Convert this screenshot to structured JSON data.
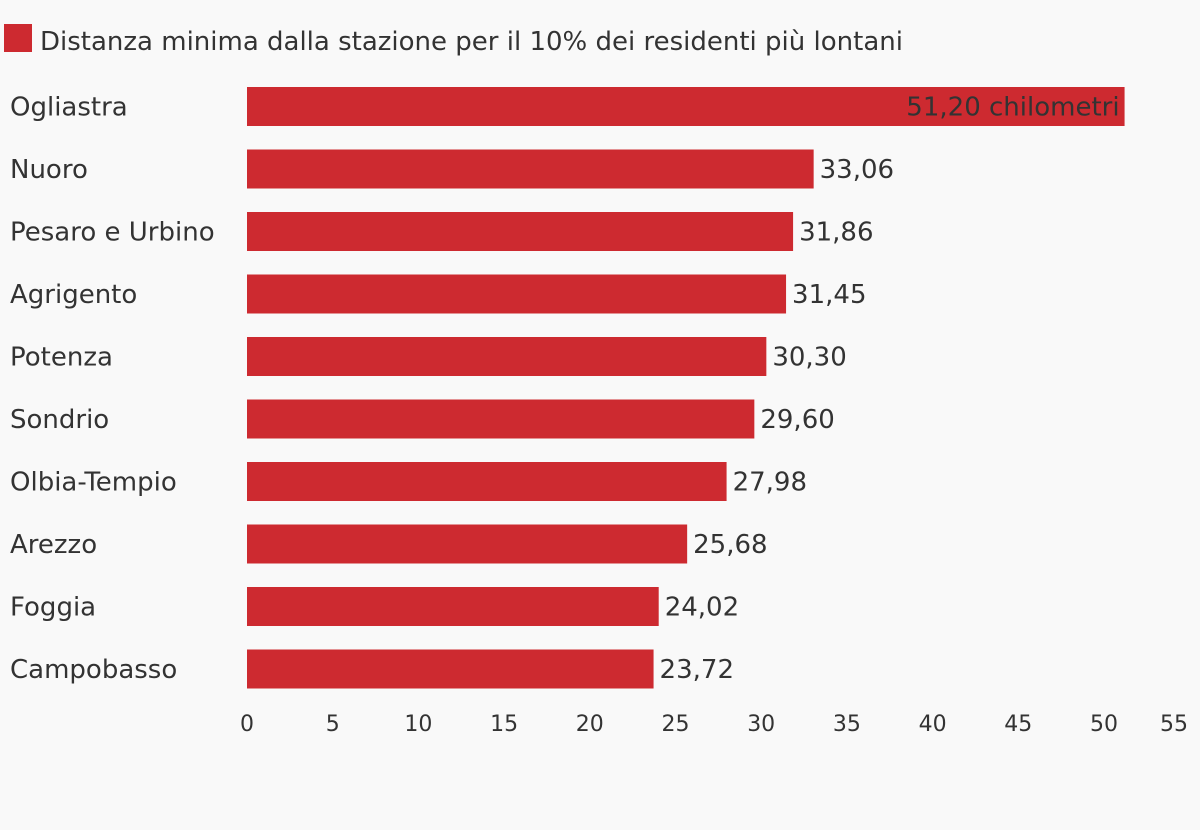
{
  "chart_data": {
    "type": "bar",
    "orientation": "horizontal",
    "legend": {
      "position": "top-left",
      "label": "Distanza minima dalla stazione per il 10% dei residenti più lontani"
    },
    "series": [
      {
        "name": "Distanza minima dalla stazione per il 10% dei residenti più lontani",
        "color": "#cd2a30",
        "values": [
          51.2,
          33.06,
          31.86,
          31.45,
          30.3,
          29.6,
          27.98,
          25.68,
          24.02,
          23.72
        ]
      }
    ],
    "categories": [
      "Ogliastra",
      "Nuoro",
      "Pesaro e Urbino",
      "Agrigento",
      "Potenza",
      "Sondrio",
      "Olbia-Tempio",
      "Arezzo",
      "Foggia",
      "Campobasso"
    ],
    "data_labels": [
      "51,20 chilometri",
      "33,06",
      "31,86",
      "31,45",
      "30,30",
      "29,60",
      "27,98",
      "25,68",
      "24,02",
      "23,72"
    ],
    "xlim": [
      0,
      55
    ],
    "xticks": [
      0,
      5,
      10,
      15,
      20,
      25,
      30,
      35,
      40,
      45,
      50,
      55
    ],
    "grid": false
  }
}
